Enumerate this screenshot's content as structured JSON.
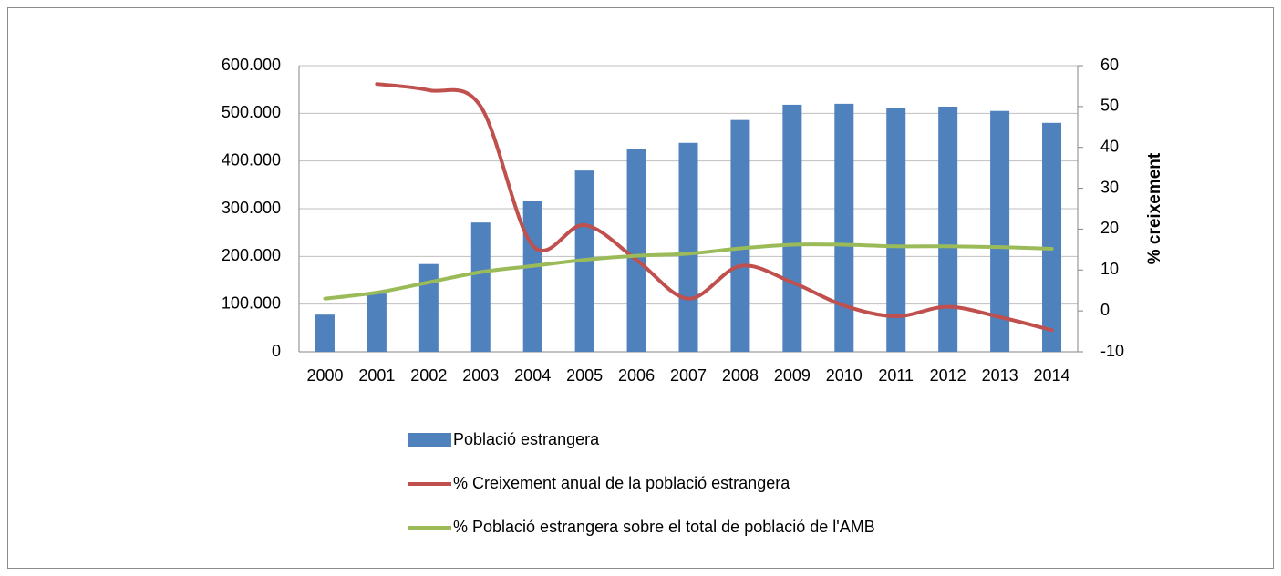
{
  "chart_data": {
    "type": "bar",
    "categories": [
      "2000",
      "2001",
      "2002",
      "2003",
      "2004",
      "2005",
      "2006",
      "2007",
      "2008",
      "2009",
      "2010",
      "2011",
      "2012",
      "2013",
      "2014"
    ],
    "series": [
      {
        "name": "Població estrangera",
        "type": "bar",
        "color": "#4f81bd",
        "values": [
          78000,
          122000,
          184000,
          271000,
          317000,
          380000,
          426000,
          438000,
          486000,
          518000,
          520000,
          511000,
          514000,
          505000,
          480000
        ]
      },
      {
        "name": "% Creixement anual de la població estrangera",
        "type": "line",
        "axis": "y2",
        "color": "#c0504d",
        "values": [
          null,
          55.5,
          54,
          50,
          16,
          21,
          12.5,
          3,
          11,
          7,
          1.3,
          -1.3,
          1,
          -1.5,
          -4.7
        ]
      },
      {
        "name": "% Població estrangera sobre el total de població de l'AMB",
        "type": "line",
        "axis": "y2",
        "color": "#9bbb59",
        "values": [
          3,
          4.5,
          7,
          9.5,
          11,
          12.5,
          13.5,
          14,
          15.3,
          16.2,
          16.2,
          15.8,
          15.8,
          15.6,
          15.2
        ]
      }
    ],
    "ylim": [
      0,
      600000
    ],
    "yticks": [
      0,
      {
        "value": 100000,
        "label": "100.000"
      },
      {
        "value": 200000,
        "label": "200.000"
      },
      {
        "value": 300000,
        "label": "300.000"
      },
      {
        "value": 400000,
        "label": "400.000"
      },
      {
        "value": 500000,
        "label": "500.000"
      },
      {
        "value": 600000,
        "label": "600.000"
      }
    ],
    "y2lim": [
      -10,
      60
    ],
    "y2ticks": [
      -10,
      0,
      10,
      20,
      30,
      40,
      50,
      60
    ],
    "y2label": "% creixement",
    "grid": true,
    "legend": "bottom"
  }
}
